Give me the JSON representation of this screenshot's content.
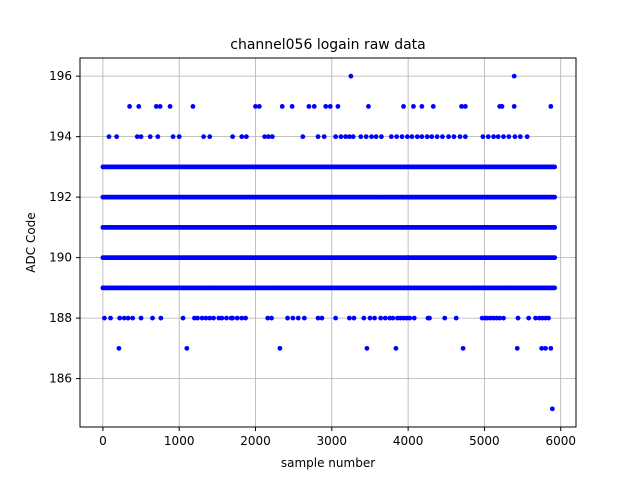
{
  "chart_data": {
    "type": "scatter",
    "title": "channel056 logain raw data",
    "xlabel": "sample number",
    "ylabel": "ADC Code",
    "xlim": [
      -300,
      6200
    ],
    "ylim": [
      184.4,
      196.6
    ],
    "xticks": [
      0,
      1000,
      2000,
      3000,
      4000,
      5000,
      6000
    ],
    "yticks": [
      186,
      188,
      190,
      192,
      194,
      196
    ],
    "grid": true,
    "marker_color": "#0000ff",
    "n_samples": 5920,
    "dense_levels": [
      189,
      190,
      191,
      192,
      193
    ],
    "sparse_points": {
      "196": [
        3250,
        5390
      ],
      "195": [
        350,
        470,
        700,
        750,
        880,
        1180,
        2000,
        2050,
        2350,
        2480,
        2700,
        2770,
        2920,
        2980,
        3080,
        3480,
        3940,
        4070,
        4180,
        4330,
        4700,
        4750,
        5200,
        5230,
        5390,
        5870
      ],
      "194": [
        80,
        180,
        450,
        500,
        620,
        720,
        920,
        1000,
        1320,
        1400,
        1700,
        1820,
        1880,
        2120,
        2170,
        2220,
        2620,
        2820,
        2900,
        3050,
        3120,
        3180,
        3230,
        3280,
        3380,
        3450,
        3520,
        3580,
        3650,
        3780,
        3850,
        3920,
        3990,
        4050,
        4120,
        4180,
        4250,
        4310,
        4380,
        4450,
        4530,
        4600,
        4680,
        4750,
        4980,
        5050,
        5120,
        5180,
        5250,
        5320,
        5400,
        5470,
        5560
      ],
      "188": [
        20,
        100,
        220,
        280,
        330,
        390,
        500,
        650,
        760,
        1050,
        1200,
        1240,
        1300,
        1350,
        1400,
        1450,
        1520,
        1560,
        1620,
        1680,
        1700,
        1760,
        1820,
        1870,
        2160,
        2210,
        2420,
        2490,
        2560,
        2640,
        2820,
        2870,
        3050,
        3230,
        3290,
        3420,
        3500,
        3560,
        3640,
        3700,
        3760,
        3800,
        3860,
        3900,
        3940,
        3980,
        4020,
        4080,
        4260,
        4280,
        4480,
        4630,
        4970,
        5010,
        5040,
        5080,
        5120,
        5160,
        5200,
        5250,
        5440,
        5580,
        5670,
        5720,
        5760,
        5800,
        5840
      ],
      "187": [
        210,
        1100,
        2320,
        3460,
        3840,
        4720,
        5430,
        5750,
        5800,
        5870
      ],
      "185": [
        5890
      ]
    }
  }
}
